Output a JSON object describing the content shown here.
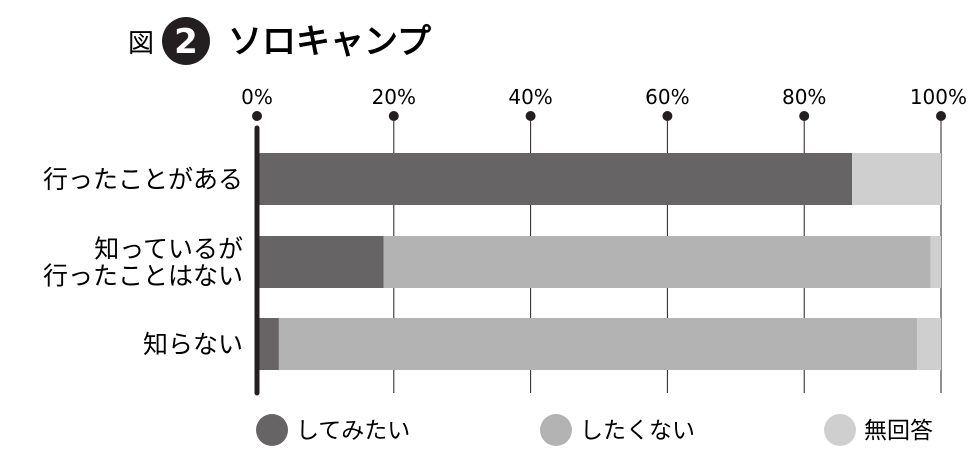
{
  "figure": {
    "prefix": "図",
    "number": "2",
    "title": "ソロキャンプ"
  },
  "chart_data": {
    "type": "bar",
    "stacked": true,
    "orientation": "horizontal",
    "title": "ソロキャンプ",
    "xlim": [
      0,
      100
    ],
    "tick_labels": [
      "0%",
      "20%",
      "40%",
      "60%",
      "80%",
      "100%"
    ],
    "grid": true,
    "legend_position": "bottom",
    "categories": [
      [
        "行ったことがある"
      ],
      [
        "知っているが",
        "行ったことはない"
      ],
      [
        "知らない"
      ]
    ],
    "series": [
      {
        "name": "してみたい",
        "color": "#666465",
        "values": [
          87.0,
          18.5,
          3.2
        ]
      },
      {
        "name": "したくない",
        "color": "#b3b3b3",
        "values": [
          0.0,
          80.0,
          93.3
        ]
      },
      {
        "name": "無回答",
        "color": "#cfcfcf",
        "values": [
          13.0,
          1.5,
          3.5
        ]
      }
    ]
  }
}
